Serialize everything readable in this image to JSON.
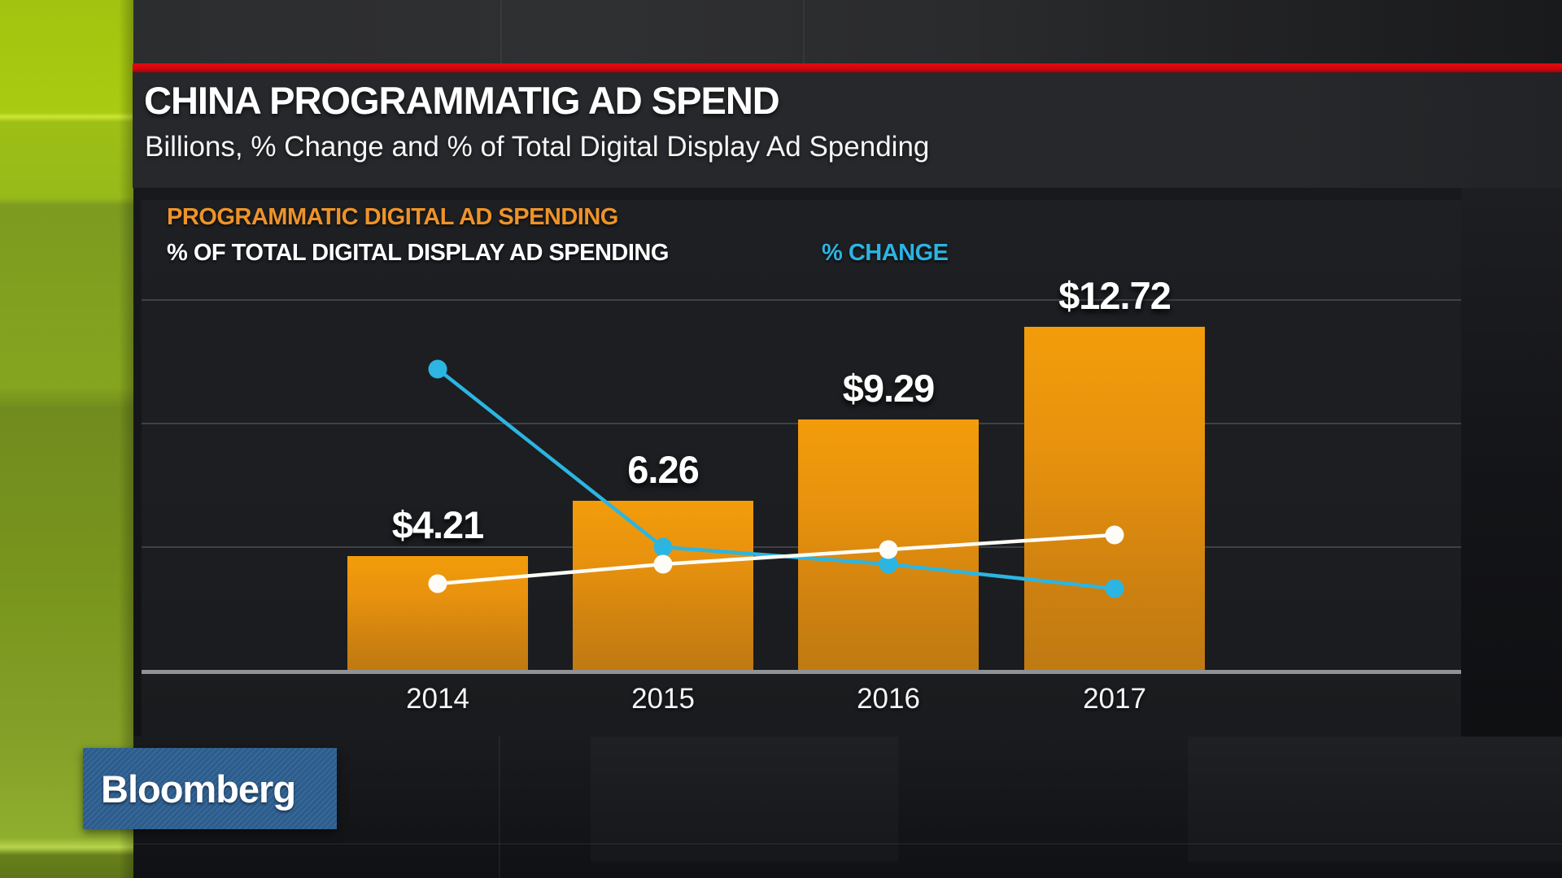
{
  "header": {
    "title": "CHINA PROGRAMMATIG AD SPEND",
    "subtitle": "Billions, % Change and % of Total Digital Display Ad Spending"
  },
  "legend": {
    "bar_series_label": "PROGRAMMATIC DIGITAL AD SPENDING",
    "white_line_label": "% OF TOTAL DIGITAL DISPLAY AD SPENDING",
    "cyan_line_label": "% CHANGE"
  },
  "branding": {
    "logo_text": "Bloomberg"
  },
  "colors": {
    "accent_red": "#d6070c",
    "bar_orange": "#ef9a0e",
    "legend_orange": "#ee9329",
    "line_cyan": "#2cb5e1",
    "line_white": "#fdfcf7",
    "logo_blue": "#2b5c8d",
    "panel_dark": "#1c1e22",
    "axis_gray": "#8f9396"
  },
  "chart_data": {
    "type": "bar",
    "subtype": "bar-line combo",
    "categories": [
      "2014",
      "2015",
      "2016",
      "2017"
    ],
    "series": [
      {
        "name": "PROGRAMMATIC DIGITAL AD SPENDING",
        "type": "bar",
        "values": [
          4.21,
          6.26,
          9.29,
          12.72
        ],
        "data_labels": [
          "$4.21",
          "6.26",
          "$9.29",
          "$12.72"
        ],
        "color": "#ef9a0e",
        "units": "billions USD"
      },
      {
        "name": "% OF TOTAL DIGITAL DISPLAY AD SPENDING",
        "type": "line",
        "values": [
          36,
          44,
          50,
          56
        ],
        "estimated": true,
        "color": "#fdfcf7",
        "units": "percent"
      },
      {
        "name": "% CHANGE",
        "type": "line",
        "values": [
          124,
          51,
          44,
          34
        ],
        "estimated": true,
        "color": "#2cb5e1",
        "units": "percent"
      }
    ],
    "title": "CHINA PROGRAMMATIG AD SPEND",
    "xlabel": "",
    "ylabel": "",
    "grid": "horizontal",
    "legend_position": "top-left"
  }
}
